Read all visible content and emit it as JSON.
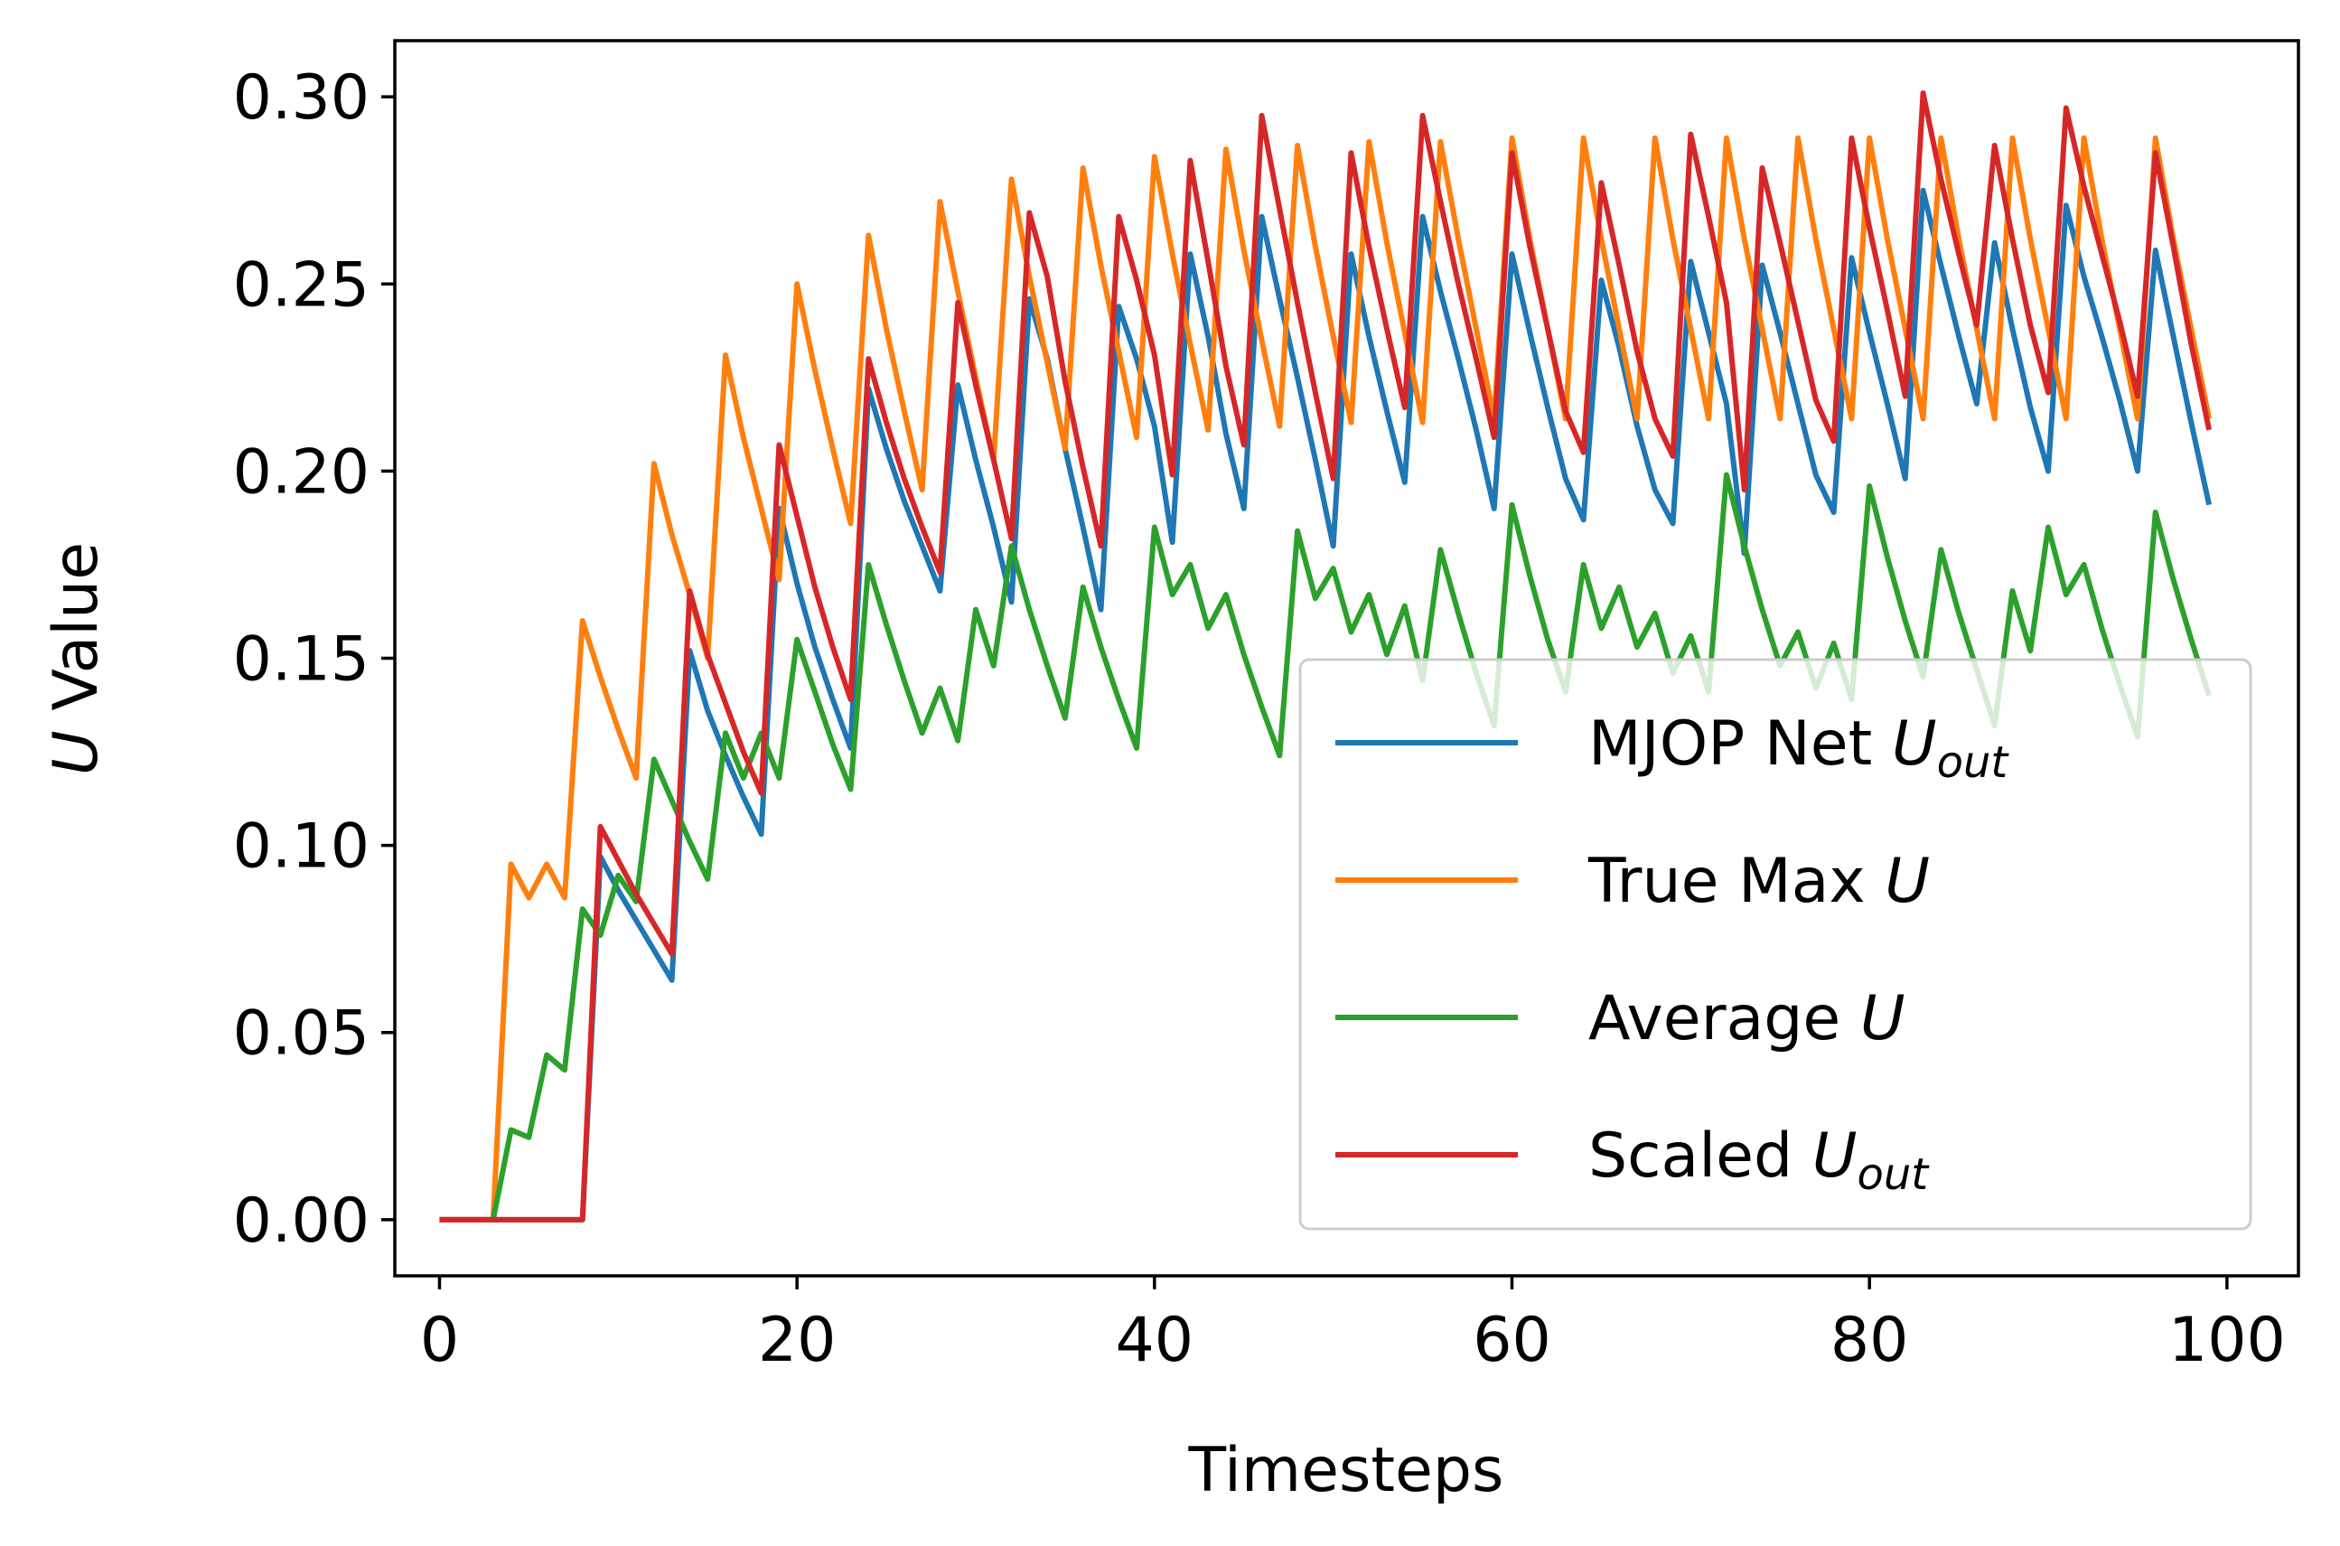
{
  "chart_data": {
    "type": "line",
    "title": "",
    "xlabel": "Timesteps",
    "ylabel": "U Value",
    "xlim": [
      -2.5,
      104
    ],
    "ylim": [
      -0.015,
      0.315
    ],
    "xticks": [
      0,
      20,
      40,
      60,
      80,
      100
    ],
    "yticks": [
      0.0,
      0.05,
      0.1,
      0.15,
      0.2,
      0.25,
      0.3
    ],
    "xtick_labels": [
      "0",
      "20",
      "40",
      "60",
      "80",
      "100"
    ],
    "ytick_labels": [
      "0.00",
      "0.05",
      "0.10",
      "0.15",
      "0.20",
      "0.25",
      "0.30"
    ],
    "grid": false,
    "legend_position": "lower-right",
    "x": [
      0,
      1,
      2,
      3,
      4,
      5,
      6,
      7,
      8,
      9,
      10,
      11,
      12,
      13,
      14,
      15,
      16,
      17,
      18,
      19,
      20,
      21,
      22,
      23,
      24,
      25,
      26,
      27,
      28,
      29,
      30,
      31,
      32,
      33,
      34,
      35,
      36,
      37,
      38,
      39,
      40,
      41,
      42,
      43,
      44,
      45,
      46,
      47,
      48,
      49,
      50,
      51,
      52,
      53,
      54,
      55,
      56,
      57,
      58,
      59,
      60,
      61,
      62,
      63,
      64,
      65,
      66,
      67,
      68,
      69,
      70,
      71,
      72,
      73,
      74,
      75,
      76,
      77,
      78,
      79,
      80,
      81,
      82,
      83,
      84,
      85,
      86,
      87,
      88,
      89,
      90,
      91,
      92,
      93,
      94,
      95,
      96,
      97,
      98,
      99
    ],
    "series": [
      {
        "name": "MJOP Net U_out",
        "legend_main": "MJOP Net ",
        "legend_italic": "U",
        "legend_sub": "out",
        "color": "#1f77b4",
        "values": [
          0,
          0,
          0,
          0,
          0,
          0,
          0,
          0,
          0,
          0.097,
          0.088,
          0.08,
          0.072,
          0.064,
          0.152,
          0.136,
          0.124,
          0.113,
          0.103,
          0.19,
          0.17,
          0.153,
          0.139,
          0.126,
          0.222,
          0.206,
          0.192,
          0.18,
          0.168,
          0.223,
          0.203,
          0.185,
          0.165,
          0.246,
          0.23,
          0.206,
          0.185,
          0.163,
          0.244,
          0.23,
          0.212,
          0.181,
          0.258,
          0.236,
          0.21,
          0.19,
          0.268,
          0.246,
          0.225,
          0.203,
          0.18,
          0.258,
          0.236,
          0.216,
          0.197,
          0.268,
          0.248,
          0.23,
          0.211,
          0.19,
          0.258,
          0.237,
          0.217,
          0.198,
          0.187,
          0.251,
          0.233,
          0.212,
          0.195,
          0.186,
          0.256,
          0.237,
          0.218,
          0.178,
          0.255,
          0.237,
          0.218,
          0.199,
          0.189,
          0.257,
          0.237,
          0.218,
          0.198,
          0.275,
          0.255,
          0.236,
          0.218,
          0.261,
          0.238,
          0.217,
          0.2,
          0.271,
          0.252,
          0.236,
          0.219,
          0.2,
          0.259,
          0.236,
          0.213,
          0.191
        ]
      },
      {
        "name": "True Max U",
        "legend_main": "True Max ",
        "legend_italic": "U",
        "legend_sub": "",
        "color": "#ff7f0e",
        "values": [
          0,
          0,
          0,
          0,
          0.095,
          0.086,
          0.095,
          0.086,
          0.16,
          0.145,
          0.131,
          0.118,
          0.202,
          0.183,
          0.167,
          0.15,
          0.231,
          0.209,
          0.19,
          0.171,
          0.25,
          0.227,
          0.206,
          0.186,
          0.263,
          0.238,
          0.216,
          0.195,
          0.272,
          0.248,
          0.225,
          0.203,
          0.278,
          0.252,
          0.229,
          0.206,
          0.281,
          0.255,
          0.232,
          0.209,
          0.284,
          0.258,
          0.234,
          0.211,
          0.286,
          0.259,
          0.235,
          0.212,
          0.287,
          0.26,
          0.236,
          0.213,
          0.288,
          0.261,
          0.237,
          0.213,
          0.288,
          0.262,
          0.238,
          0.214,
          0.289,
          0.262,
          0.238,
          0.214,
          0.289,
          0.262,
          0.238,
          0.214,
          0.289,
          0.262,
          0.238,
          0.214,
          0.289,
          0.262,
          0.238,
          0.214,
          0.289,
          0.262,
          0.238,
          0.214,
          0.289,
          0.262,
          0.238,
          0.214,
          0.289,
          0.262,
          0.238,
          0.214,
          0.289,
          0.262,
          0.238,
          0.214,
          0.289,
          0.262,
          0.238,
          0.214,
          0.289,
          0.262,
          0.238,
          0.214
        ]
      },
      {
        "name": "Average U",
        "legend_main": "Average ",
        "legend_italic": "U",
        "legend_sub": "",
        "color": "#2ca02c",
        "values": [
          0,
          0,
          0,
          0,
          0.024,
          0.022,
          0.044,
          0.04,
          0.083,
          0.076,
          0.092,
          0.085,
          0.123,
          0.112,
          0.101,
          0.091,
          0.13,
          0.118,
          0.13,
          0.118,
          0.155,
          0.141,
          0.127,
          0.115,
          0.175,
          0.159,
          0.144,
          0.13,
          0.142,
          0.128,
          0.163,
          0.148,
          0.18,
          0.163,
          0.148,
          0.134,
          0.169,
          0.153,
          0.139,
          0.126,
          0.185,
          0.167,
          0.175,
          0.158,
          0.167,
          0.151,
          0.137,
          0.124,
          0.184,
          0.166,
          0.174,
          0.157,
          0.167,
          0.151,
          0.164,
          0.144,
          0.179,
          0.162,
          0.146,
          0.132,
          0.191,
          0.172,
          0.155,
          0.141,
          0.175,
          0.158,
          0.169,
          0.153,
          0.162,
          0.146,
          0.156,
          0.141,
          0.199,
          0.18,
          0.163,
          0.148,
          0.157,
          0.142,
          0.154,
          0.139,
          0.196,
          0.177,
          0.16,
          0.145,
          0.179,
          0.162,
          0.147,
          0.132,
          0.168,
          0.152,
          0.185,
          0.167,
          0.175,
          0.158,
          0.143,
          0.129,
          0.189,
          0.171,
          0.155,
          0.14
        ]
      },
      {
        "name": "Scaled U_out",
        "legend_main": "Scaled ",
        "legend_italic": "U",
        "legend_sub": "out",
        "color": "#d62728",
        "values": [
          0,
          0,
          0,
          0,
          0,
          0,
          0,
          0,
          0,
          0.105,
          0.096,
          0.087,
          0.079,
          0.071,
          0.168,
          0.151,
          0.138,
          0.125,
          0.114,
          0.207,
          0.188,
          0.169,
          0.153,
          0.139,
          0.23,
          0.213,
          0.198,
          0.185,
          0.173,
          0.245,
          0.223,
          0.203,
          0.182,
          0.269,
          0.252,
          0.224,
          0.201,
          0.18,
          0.268,
          0.251,
          0.231,
          0.199,
          0.283,
          0.256,
          0.228,
          0.207,
          0.295,
          0.27,
          0.245,
          0.221,
          0.198,
          0.285,
          0.26,
          0.238,
          0.217,
          0.295,
          0.272,
          0.25,
          0.23,
          0.209,
          0.285,
          0.26,
          0.238,
          0.216,
          0.205,
          0.277,
          0.255,
          0.232,
          0.214,
          0.204,
          0.29,
          0.268,
          0.245,
          0.195,
          0.281,
          0.261,
          0.24,
          0.219,
          0.208,
          0.289,
          0.265,
          0.243,
          0.22,
          0.301,
          0.278,
          0.258,
          0.239,
          0.287,
          0.262,
          0.239,
          0.221,
          0.297,
          0.276,
          0.258,
          0.24,
          0.22,
          0.285,
          0.26,
          0.234,
          0.211
        ]
      }
    ]
  }
}
